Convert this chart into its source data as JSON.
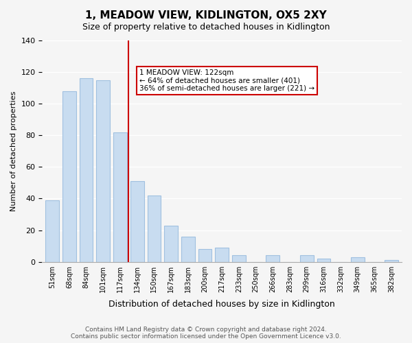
{
  "title": "1, MEADOW VIEW, KIDLINGTON, OX5 2XY",
  "subtitle": "Size of property relative to detached houses in Kidlington",
  "xlabel": "Distribution of detached houses by size in Kidlington",
  "ylabel": "Number of detached properties",
  "categories": [
    "51sqm",
    "68sqm",
    "84sqm",
    "101sqm",
    "117sqm",
    "134sqm",
    "150sqm",
    "167sqm",
    "183sqm",
    "200sqm",
    "217sqm",
    "233sqm",
    "250sqm",
    "266sqm",
    "283sqm",
    "299sqm",
    "316sqm",
    "332sqm",
    "349sqm",
    "365sqm",
    "382sqm"
  ],
  "values": [
    39,
    108,
    116,
    115,
    82,
    51,
    42,
    23,
    16,
    8,
    9,
    4,
    0,
    4,
    0,
    4,
    2,
    0,
    3,
    0,
    1
  ],
  "bar_color": "#c8dcf0",
  "bar_edge_color": "#a0c0e0",
  "highlight_index": 4,
  "highlight_line_color": "#cc0000",
  "annotation_text": "1 MEADOW VIEW: 122sqm\n← 64% of detached houses are smaller (401)\n36% of semi-detached houses are larger (221) →",
  "annotation_box_color": "#ffffff",
  "annotation_box_edge_color": "#cc0000",
  "ylim": [
    0,
    140
  ],
  "yticks": [
    0,
    20,
    40,
    60,
    80,
    100,
    120,
    140
  ],
  "footer": "Contains HM Land Registry data © Crown copyright and database right 2024.\nContains public sector information licensed under the Open Government Licence v3.0.",
  "background_color": "#f5f5f5"
}
